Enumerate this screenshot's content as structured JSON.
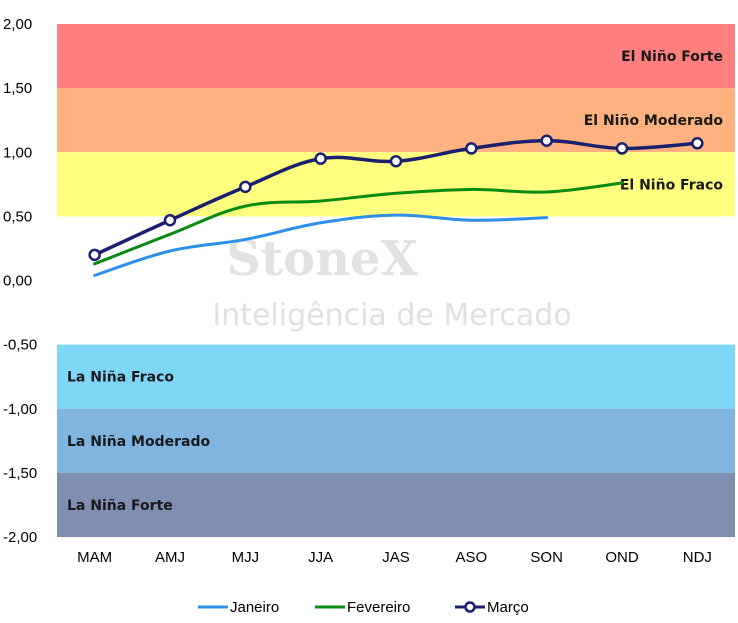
{
  "chart_data": {
    "type": "line",
    "categories": [
      "MAM",
      "AMJ",
      "MJJ",
      "JJA",
      "JAS",
      "ASO",
      "SON",
      "OND",
      "NDJ"
    ],
    "y_ticks": [
      "2,00",
      "1,50",
      "1,00",
      "0,50",
      "0,00",
      "-0,50",
      "-1,00",
      "-1,50",
      "-2,00"
    ],
    "ylim": [
      -2,
      2
    ],
    "grid": false,
    "legend_position": "bottom",
    "bands": [
      {
        "label": "El Niño Forte",
        "from": 1.5,
        "to": 2.0,
        "color": "#ff7f7f",
        "align": "right"
      },
      {
        "label": "El Niño Moderado",
        "from": 1.0,
        "to": 1.5,
        "color": "#ffb27f",
        "align": "right"
      },
      {
        "label": "El Niño Fraco",
        "from": 0.5,
        "to": 1.0,
        "color": "#ffff7f",
        "align": "right"
      },
      {
        "label": "La Niña Fraco",
        "from": -1.0,
        "to": -0.5,
        "color": "#7fd7f7",
        "align": "left"
      },
      {
        "label": "La Niña Moderado",
        "from": -1.5,
        "to": -1.0,
        "color": "#7fb5e0",
        "align": "left"
      },
      {
        "label": "La Niña Forte",
        "from": -2.0,
        "to": -1.5,
        "color": "#7f8fb0",
        "align": "left"
      }
    ],
    "series": [
      {
        "name": "Janeiro",
        "color": "#2e8fe8",
        "markers": false,
        "values": [
          0.04,
          0.23,
          0.32,
          0.45,
          0.51,
          0.47,
          0.49,
          null,
          null
        ]
      },
      {
        "name": "Fevereiro",
        "color": "#0a8a12",
        "markers": false,
        "values": [
          0.13,
          0.36,
          0.58,
          0.62,
          0.68,
          0.71,
          0.69,
          0.76,
          null
        ]
      },
      {
        "name": "Março",
        "color": "#1a1f6e",
        "markers": true,
        "values": [
          0.2,
          0.47,
          0.73,
          0.95,
          0.93,
          1.03,
          1.09,
          1.03,
          1.07
        ]
      }
    ]
  },
  "watermark": {
    "brand": "StoneX",
    "tagline": "Inteligência de Mercado"
  }
}
